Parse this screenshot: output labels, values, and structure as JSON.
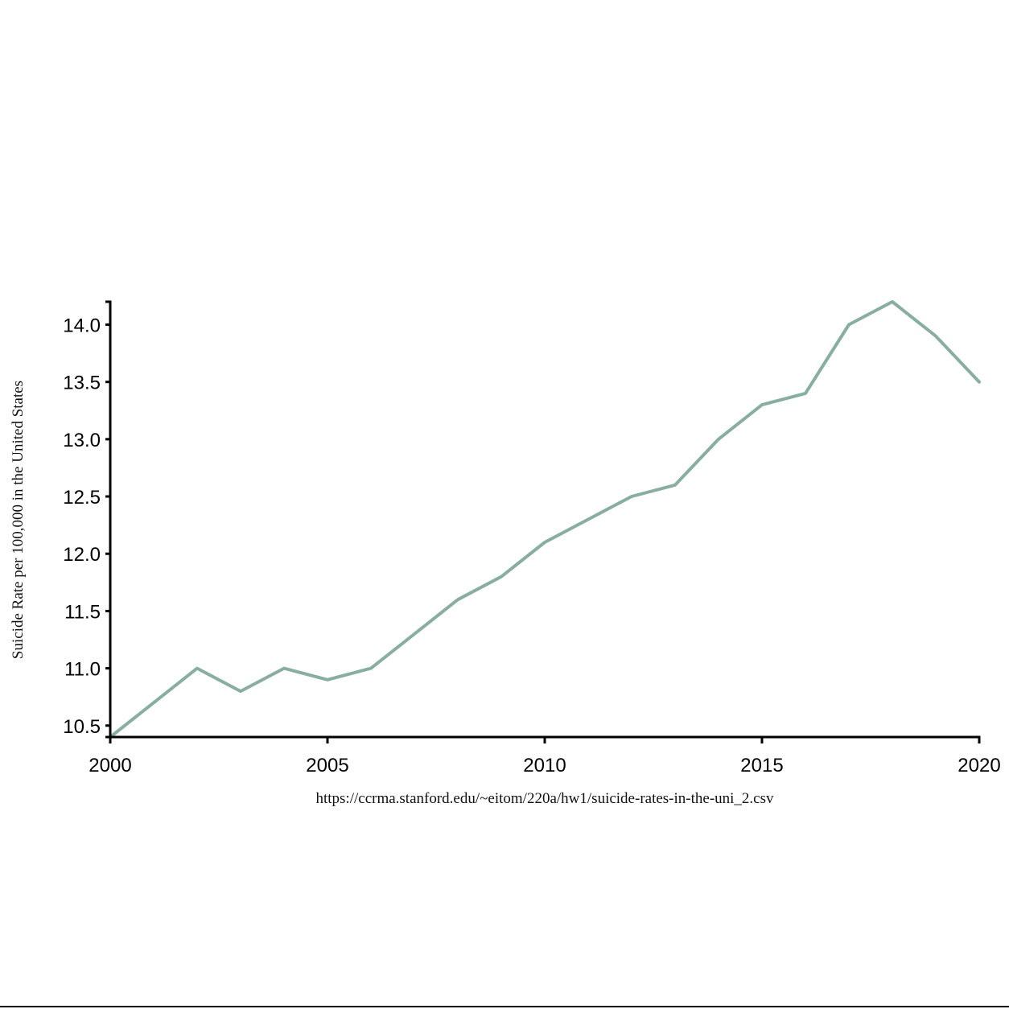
{
  "chart_data": {
    "type": "line",
    "xlabel": "https://ccrma.stanford.edu/~eitom/220a/hw1/suicide-rates-in-the-uni_2.csv",
    "ylabel": "Suicide Rate per 100,000 in the United States",
    "xlim": [
      2000,
      2020
    ],
    "ylim": [
      10.4,
      14.2
    ],
    "x_ticks": [
      2000,
      2005,
      2010,
      2015,
      2020
    ],
    "y_ticks": [
      "10.5",
      "11.0",
      "11.5",
      "12.0",
      "12.5",
      "13.0",
      "13.5",
      "14.0"
    ],
    "grid": false,
    "line_color": "#88ada1",
    "series": [
      {
        "x": [
          2000,
          2001,
          2002,
          2003,
          2004,
          2005,
          2006,
          2007,
          2008,
          2009,
          2010,
          2011,
          2012,
          2013,
          2014,
          2015,
          2016,
          2017,
          2018,
          2019,
          2020
        ],
        "values": [
          10.4,
          10.7,
          11.0,
          10.8,
          11.0,
          10.9,
          11.0,
          11.3,
          11.6,
          11.8,
          12.1,
          12.3,
          12.5,
          12.6,
          13.0,
          13.3,
          13.4,
          14.0,
          14.2,
          13.9,
          13.5
        ]
      }
    ]
  }
}
